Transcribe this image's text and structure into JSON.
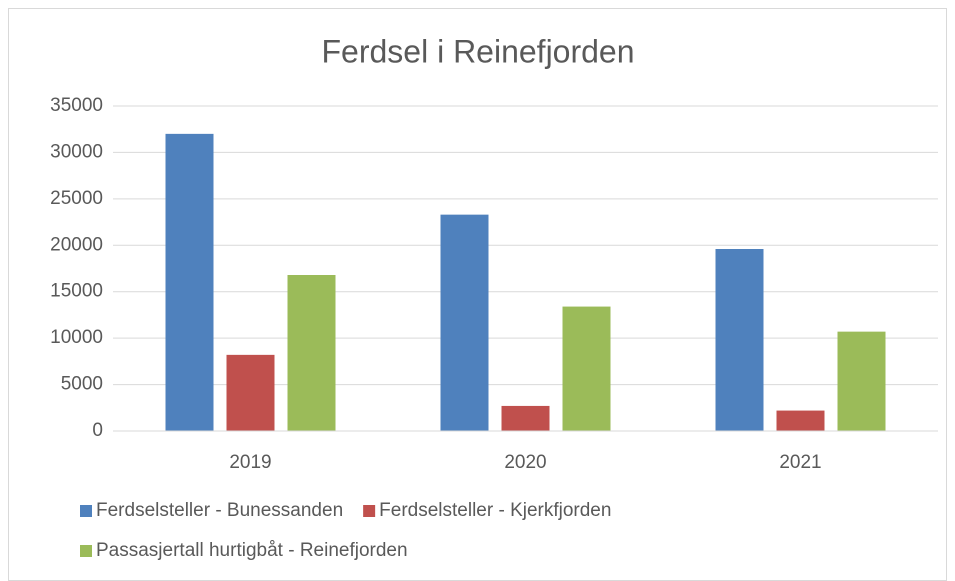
{
  "chart_data": {
    "type": "bar",
    "title": "Ferdsel i Reinefjorden",
    "categories": [
      "2019",
      "2020",
      "2021"
    ],
    "series": [
      {
        "name": "Ferdselsteller - Bunessanden",
        "color": "#4f81bd",
        "values": [
          32000,
          23300,
          19600
        ]
      },
      {
        "name": "Ferdselsteller - Kjerkfjorden",
        "color": "#c0504d",
        "values": [
          8200,
          2700,
          2200
        ]
      },
      {
        "name": "Passasjertall hurtigbåt - Reinefjorden",
        "color": "#9bbb59",
        "values": [
          16800,
          13400,
          10700
        ]
      }
    ],
    "ylim": [
      0,
      35000
    ],
    "yticks": [
      0,
      5000,
      10000,
      15000,
      20000,
      25000,
      30000,
      35000
    ],
    "grid": true,
    "legend": "bottom"
  }
}
